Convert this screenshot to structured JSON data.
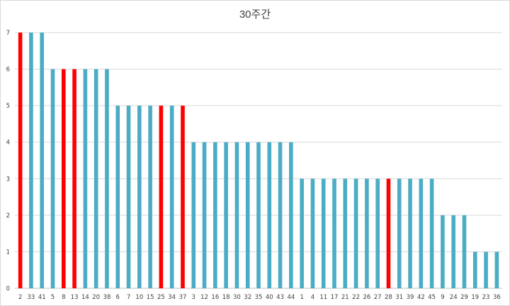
{
  "chart_data": {
    "type": "bar",
    "title": "30주간",
    "xlabel": "",
    "ylabel": "",
    "ylim": [
      0,
      7
    ],
    "yticks": [
      "0",
      "1",
      "2",
      "3",
      "4",
      "5",
      "6",
      "7"
    ],
    "grid": true,
    "categories": [
      "2",
      "33",
      "41",
      "5",
      "8",
      "13",
      "14",
      "20",
      "38",
      "6",
      "7",
      "10",
      "15",
      "25",
      "34",
      "37",
      "3",
      "12",
      "16",
      "18",
      "30",
      "32",
      "35",
      "40",
      "43",
      "44",
      "1",
      "4",
      "11",
      "17",
      "21",
      "22",
      "26",
      "27",
      "28",
      "31",
      "39",
      "42",
      "45",
      "9",
      "24",
      "29",
      "19",
      "23",
      "36"
    ],
    "values": [
      7,
      7,
      7,
      6,
      6,
      6,
      6,
      6,
      6,
      5,
      5,
      5,
      5,
      5,
      5,
      5,
      4,
      4,
      4,
      4,
      4,
      4,
      4,
      4,
      4,
      4,
      3,
      3,
      3,
      3,
      3,
      3,
      3,
      3,
      3,
      3,
      3,
      3,
      3,
      2,
      2,
      2,
      1,
      1,
      1
    ],
    "highlighted": [
      "2",
      "8",
      "13",
      "25",
      "37",
      "28"
    ],
    "colors": {
      "default": "#4bacc6",
      "highlight": "#ff0000",
      "grid": "#d9d9d9",
      "axis": "#bfbfbf"
    }
  }
}
